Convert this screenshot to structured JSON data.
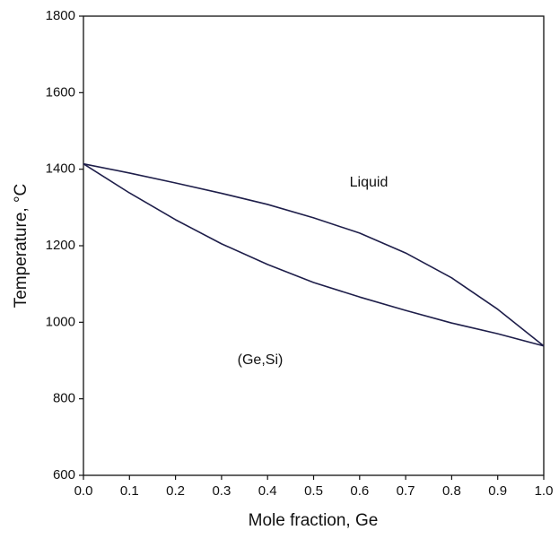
{
  "chart_data": {
    "type": "line",
    "xlabel": "Mole fraction, Ge",
    "ylabel": "Temperature, °C",
    "x": [
      0,
      0.1,
      0.2,
      0.3,
      0.4,
      0.5,
      0.6,
      0.7,
      0.8,
      0.9,
      1
    ],
    "series": [
      {
        "color": "#1e1e4a",
        "values": [
          1414,
          1390,
          1364,
          1337,
          1308,
          1273,
          1233,
          1181,
          1116,
          1034,
          938
        ]
      },
      {
        "color": "#1e1e4a",
        "values": [
          1414,
          1338,
          1268,
          1205,
          1151,
          1104,
          1066,
          1031,
          998,
          970,
          938
        ]
      }
    ],
    "annotations": [
      "Liquid",
      "(Ge,Si)"
    ],
    "xlim": [
      0,
      1
    ],
    "xticks": [
      {
        "value": 0,
        "label": "0.0"
      },
      0.1,
      0.2,
      0.3,
      0.4,
      0.5,
      0.6,
      0.7,
      0.8,
      0.9,
      {
        "value": 1,
        "label": "1.0"
      }
    ],
    "ylim": [
      600,
      1800
    ],
    "yticks": [
      600,
      800,
      1000,
      1200,
      1400,
      1600,
      1800
    ],
    "grid": false
  }
}
